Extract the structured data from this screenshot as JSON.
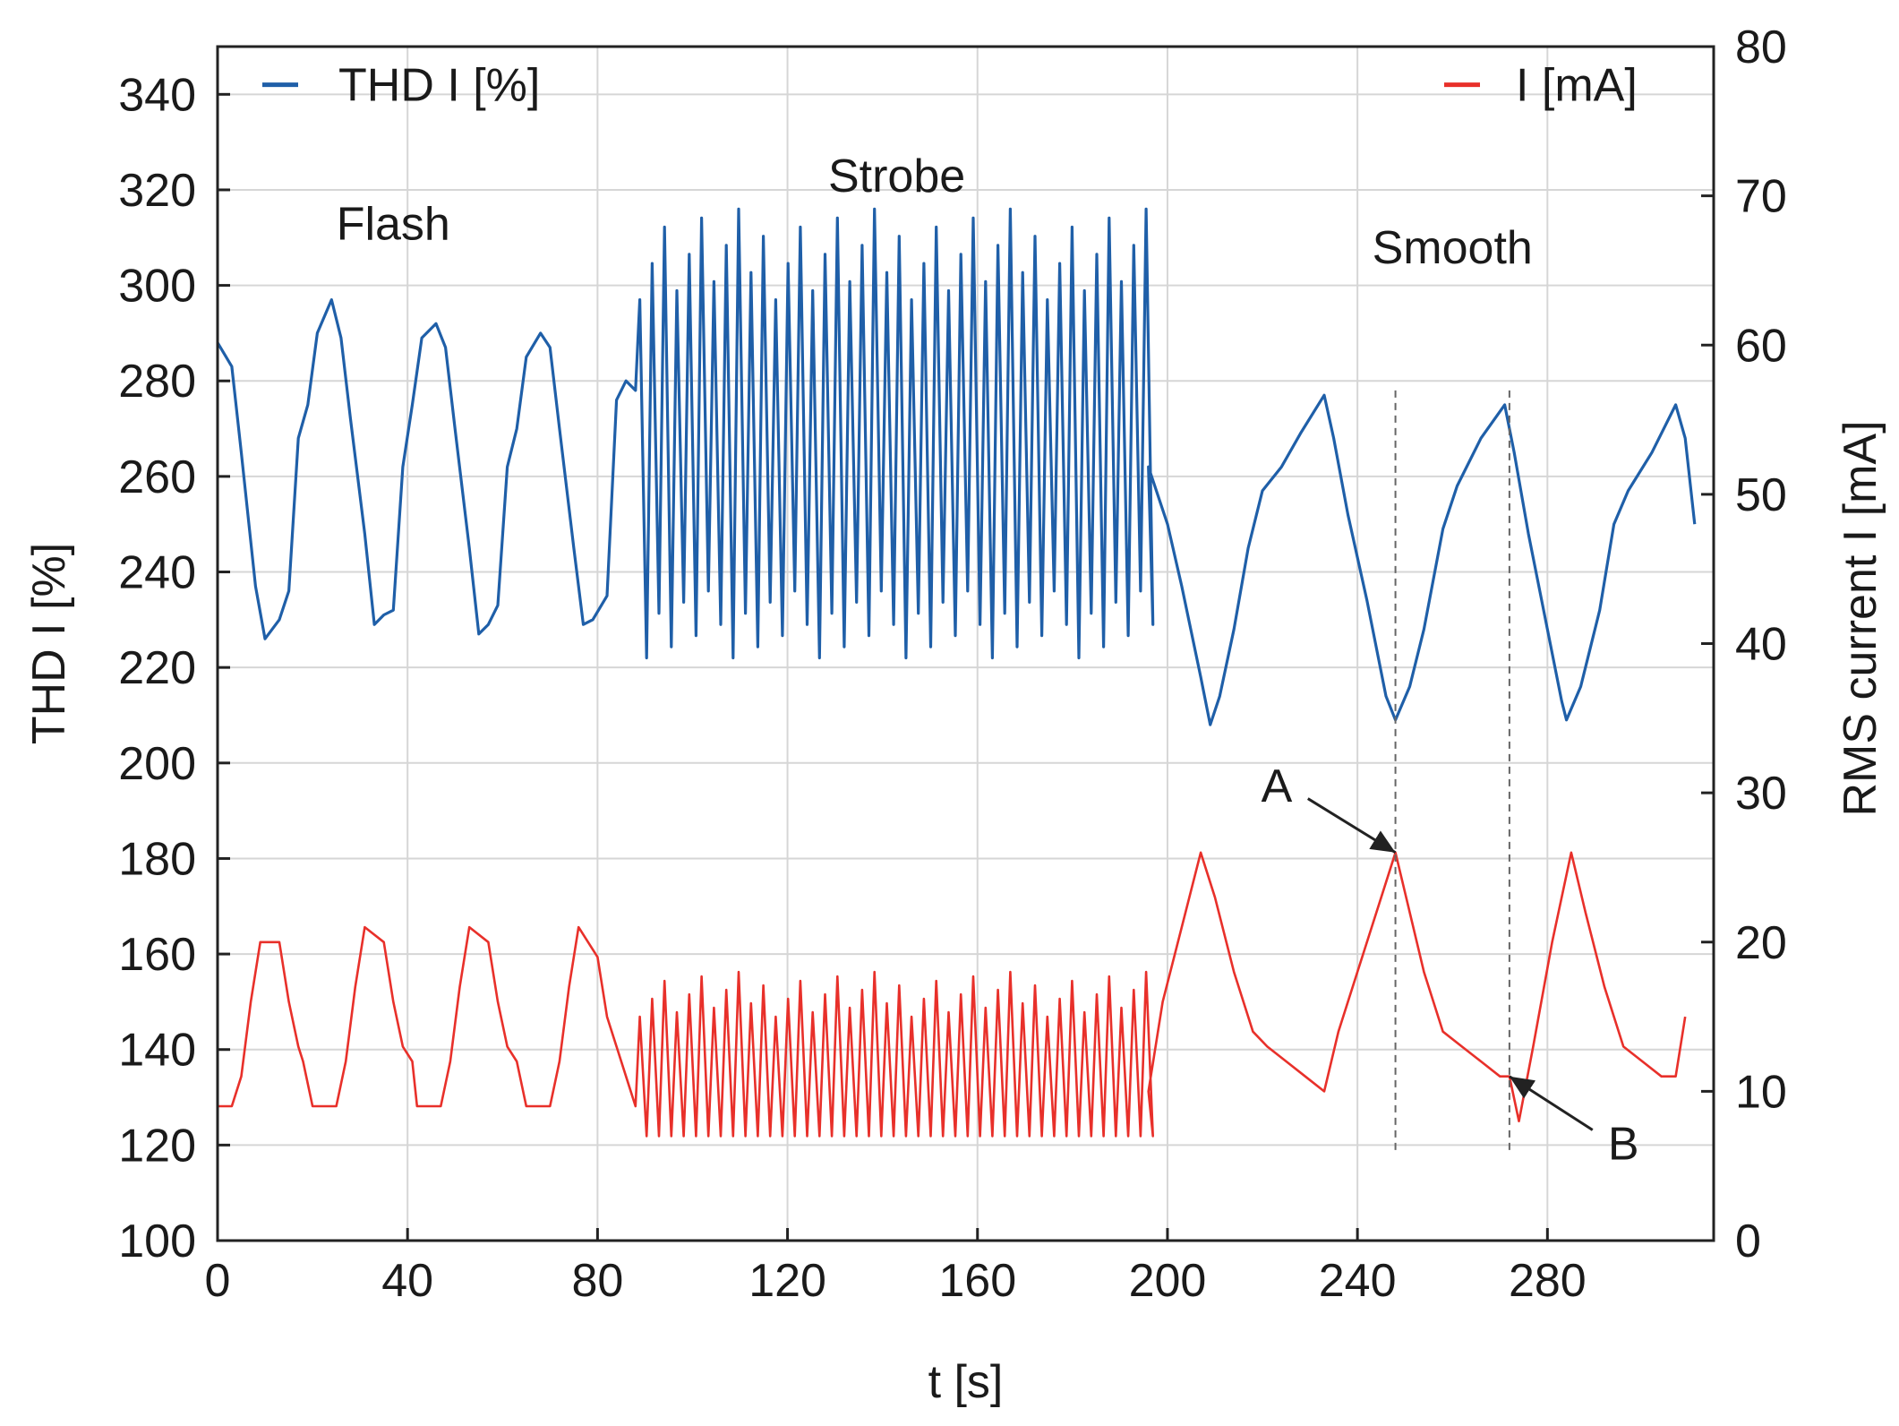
{
  "chart_data": {
    "type": "line",
    "xlabel": "t [s]",
    "ylabel_left": "THD I [%]",
    "ylabel_right": "RMS current  I [mA]",
    "xlim": [
      0,
      315
    ],
    "ylim_left": [
      100,
      350
    ],
    "ylim_right": [
      0,
      80
    ],
    "xticks": [
      0,
      40,
      80,
      120,
      160,
      200,
      240,
      280
    ],
    "yticks_left": [
      100,
      120,
      140,
      160,
      180,
      200,
      220,
      240,
      260,
      280,
      300,
      320,
      340
    ],
    "yticks_right": [
      0,
      10,
      20,
      30,
      40,
      50,
      60,
      70,
      80
    ],
    "grid": true,
    "legend": [
      {
        "name": "THD I [%]",
        "color": "#1f5fa8",
        "placement": "top-left"
      },
      {
        "name": "I [mA]",
        "color": "#e8302a",
        "placement": "top-right"
      }
    ],
    "mode_labels": [
      {
        "text": "Flash",
        "t": 37,
        "value": 313
      },
      {
        "text": "Strobe",
        "t": 143,
        "value": 323
      },
      {
        "text": "Smooth",
        "t": 260,
        "value": 308
      }
    ],
    "annotations": [
      {
        "label": "A",
        "t": 248,
        "value_mA": 26,
        "label_t": 223,
        "label_mA": 30.5
      },
      {
        "label": "B",
        "t": 272,
        "value_mA": 11,
        "label_t": 296,
        "label_mA": 6.5
      }
    ],
    "reference_lines_t": [
      248,
      272
    ],
    "series": [
      {
        "name": "THD I [%]",
        "axis": "left",
        "color": "#1f5fa8",
        "points": [
          [
            0,
            288
          ],
          [
            3,
            283
          ],
          [
            5,
            265
          ],
          [
            8,
            237
          ],
          [
            10,
            226
          ],
          [
            13,
            230
          ],
          [
            15,
            236
          ],
          [
            17,
            268
          ],
          [
            19,
            275
          ],
          [
            21,
            290
          ],
          [
            24,
            297
          ],
          [
            26,
            289
          ],
          [
            28,
            272
          ],
          [
            31,
            248
          ],
          [
            33,
            229
          ],
          [
            35,
            231
          ],
          [
            37,
            232
          ],
          [
            39,
            262
          ],
          [
            41,
            275
          ],
          [
            43,
            289
          ],
          [
            46,
            292
          ],
          [
            48,
            287
          ],
          [
            50,
            270
          ],
          [
            53,
            245
          ],
          [
            55,
            227
          ],
          [
            57,
            229
          ],
          [
            59,
            233
          ],
          [
            61,
            262
          ],
          [
            63,
            270
          ],
          [
            65,
            285
          ],
          [
            68,
            290
          ],
          [
            70,
            287
          ],
          [
            72,
            270
          ],
          [
            75,
            245
          ],
          [
            77,
            229
          ],
          [
            79,
            230
          ],
          [
            82,
            235
          ],
          [
            84,
            276
          ],
          [
            86,
            280
          ],
          [
            88,
            278
          ]
        ],
        "strobe": {
          "t_start": 88,
          "t_end": 196,
          "period": 2.6,
          "high": [
            297,
            316
          ],
          "low": [
            222,
            236
          ]
        },
        "smooth": [
          [
            196,
            262
          ],
          [
            200,
            250
          ],
          [
            203,
            237
          ],
          [
            207,
            218
          ],
          [
            209,
            208
          ],
          [
            211,
            214
          ],
          [
            214,
            228
          ],
          [
            217,
            245
          ],
          [
            220,
            257
          ],
          [
            224,
            262
          ],
          [
            228,
            269
          ],
          [
            233,
            277
          ],
          [
            235,
            268
          ],
          [
            238,
            252
          ],
          [
            242,
            234
          ],
          [
            246,
            214
          ],
          [
            248,
            209
          ],
          [
            251,
            216
          ],
          [
            254,
            228
          ],
          [
            258,
            249
          ],
          [
            261,
            258
          ],
          [
            266,
            268
          ],
          [
            271,
            275
          ],
          [
            273,
            265
          ],
          [
            276,
            248
          ],
          [
            280,
            228
          ],
          [
            283,
            213
          ],
          [
            284,
            209
          ],
          [
            287,
            216
          ],
          [
            291,
            232
          ],
          [
            294,
            250
          ],
          [
            297,
            257
          ],
          [
            302,
            265
          ],
          [
            307,
            275
          ],
          [
            309,
            268
          ],
          [
            311,
            250
          ]
        ]
      },
      {
        "name": "I [mA]",
        "axis": "right",
        "color": "#e8302a",
        "points": [
          [
            0,
            9
          ],
          [
            3,
            9
          ],
          [
            5,
            11
          ],
          [
            7,
            16
          ],
          [
            9,
            20
          ],
          [
            13,
            20
          ],
          [
            15,
            16
          ],
          [
            17,
            13
          ],
          [
            18,
            12
          ],
          [
            20,
            9
          ],
          [
            25,
            9
          ],
          [
            27,
            12
          ],
          [
            29,
            17
          ],
          [
            31,
            21
          ],
          [
            35,
            20
          ],
          [
            37,
            16
          ],
          [
            39,
            13
          ],
          [
            41,
            12
          ],
          [
            42,
            9
          ],
          [
            47,
            9
          ],
          [
            49,
            12
          ],
          [
            51,
            17
          ],
          [
            53,
            21
          ],
          [
            57,
            20
          ],
          [
            59,
            16
          ],
          [
            61,
            13
          ],
          [
            63,
            12
          ],
          [
            65,
            9
          ],
          [
            70,
            9
          ],
          [
            72,
            12
          ],
          [
            74,
            17
          ],
          [
            76,
            21
          ],
          [
            80,
            19
          ],
          [
            82,
            15
          ],
          [
            84,
            13
          ],
          [
            86,
            11
          ],
          [
            88,
            9
          ]
        ],
        "strobe": {
          "t_start": 88,
          "t_end": 196,
          "period": 2.6,
          "high": [
            15,
            18
          ],
          "low": [
            7,
            7
          ]
        },
        "smooth": [
          [
            196,
            10
          ],
          [
            199,
            16
          ],
          [
            203,
            21
          ],
          [
            207,
            26
          ],
          [
            210,
            23
          ],
          [
            214,
            18
          ],
          [
            218,
            14
          ],
          [
            221,
            13
          ],
          [
            225,
            12
          ],
          [
            229,
            11
          ],
          [
            233,
            10
          ],
          [
            236,
            14
          ],
          [
            240,
            18
          ],
          [
            244,
            22
          ],
          [
            248,
            26
          ],
          [
            251,
            22
          ],
          [
            254,
            18
          ],
          [
            258,
            14
          ],
          [
            262,
            13
          ],
          [
            266,
            12
          ],
          [
            270,
            11
          ],
          [
            272,
            11
          ],
          [
            274,
            8
          ],
          [
            277,
            13
          ],
          [
            281,
            20
          ],
          [
            285,
            26
          ],
          [
            288,
            22
          ],
          [
            292,
            17
          ],
          [
            296,
            13
          ],
          [
            300,
            12
          ],
          [
            304,
            11
          ],
          [
            307,
            11
          ],
          [
            309,
            15
          ]
        ]
      }
    ]
  }
}
